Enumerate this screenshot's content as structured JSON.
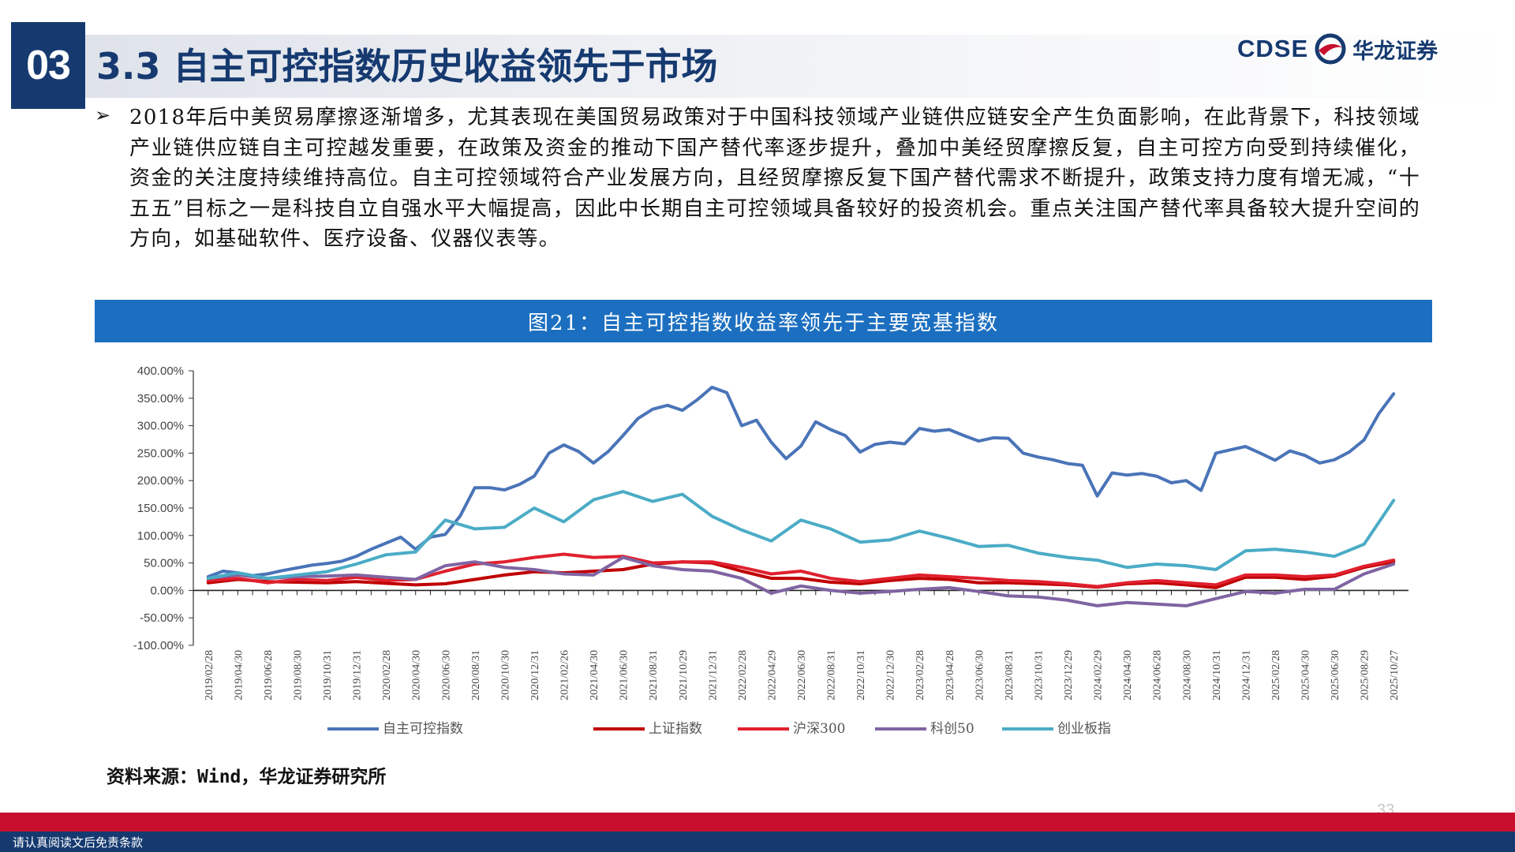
{
  "header": {
    "section_number": "03",
    "title": "3.3 自主可控指数历史收益领先于市场",
    "logo_text": "CDSE",
    "logo_cn": "华龙证券",
    "brand_color": "#163a70"
  },
  "body": {
    "bullet": "2018年后中美贸易摩擦逐渐增多，尤其表现在美国贸易政策对于中国科技领域产业链供应链安全产生负面影响，在此背景下，科技领域产业链供应链自主可控越发重要，在政策及资金的推动下国产替代率逐步提升，叠加中美经贸摩擦反复，自主可控方向受到持续催化，资金的关注度持续维持高位。自主可控领域符合产业发展方向，且经贸摩擦反复下国产替代需求不断提升，政策支持力度有增无减，“十五五”目标之一是科技自立自强水平大幅提高，因此中长期自主可控领域具备较好的投资机会。重点关注国产替代率具备较大提升空间的方向，如基础软件、医疗设备、仪器仪表等。"
  },
  "figure": {
    "caption": "图21：自主可控指数收益率领先于主要宽基指数",
    "source": "资料来源：Wind，华龙证券研究所"
  },
  "footer": {
    "page_number": "33",
    "disclaimer": "请认真阅读文后免责条款"
  },
  "chart_data": {
    "type": "line",
    "title": "",
    "xlabel": "",
    "ylabel": "",
    "ylim": [
      -100,
      400
    ],
    "yticks": [
      "400.00%",
      "350.00%",
      "300.00%",
      "250.00%",
      "200.00%",
      "150.00%",
      "100.00%",
      "50.00%",
      "0.00%",
      "-50.00%",
      "-100.00%"
    ],
    "categories": [
      "2019/02/28",
      "2019/04/30",
      "2019/06/28",
      "2019/08/30",
      "2019/10/31",
      "2019/12/31",
      "2020/02/28",
      "2020/04/30",
      "2020/06/30",
      "2020/08/31",
      "2020/10/30",
      "2020/12/31",
      "2021/02/26",
      "2021/04/30",
      "2021/06/30",
      "2021/08/31",
      "2021/10/29",
      "2021/12/31",
      "2022/02/28",
      "2022/04/29",
      "2022/06/30",
      "2022/08/31",
      "2022/10/31",
      "2022/12/30",
      "2023/02/28",
      "2023/04/28",
      "2023/06/30",
      "2023/08/31",
      "2023/10/31",
      "2023/12/29",
      "2024/02/29",
      "2024/04/30",
      "2024/06/28",
      "2024/08/30",
      "2024/10/31",
      "2024/12/31",
      "2025/02/28",
      "2025/04/30",
      "2025/06/30",
      "2025/08/29",
      "2025/10/27"
    ],
    "legend_position": "bottom",
    "series": [
      {
        "name": "自主可控指数",
        "color": "#4a74b8",
        "x": [
          0,
          0.5,
          1,
          1.5,
          2,
          2.5,
          3,
          3.5,
          4,
          4.5,
          5,
          5.5,
          6,
          6.5,
          7,
          7.5,
          8,
          8.5,
          9,
          9.5,
          10,
          10.5,
          11,
          11.5,
          12,
          12.5,
          13,
          13.5,
          14,
          14.5,
          15,
          15.5,
          16,
          16.5,
          17,
          17.5,
          18,
          18.5,
          19,
          19.5,
          20,
          20.5,
          21,
          21.5,
          22,
          22.5,
          23,
          23.5,
          24,
          24.5,
          25,
          25.5,
          26,
          26.5,
          27,
          27.5,
          28,
          28.5,
          29,
          29.5,
          30,
          30.5,
          31,
          31.5,
          32,
          32.5,
          33,
          33.5,
          34,
          34.5,
          35,
          35.5,
          36,
          36.5,
          37,
          37.5,
          38,
          38.5,
          39,
          39.5,
          40
        ],
        "values": [
          25,
          35,
          32,
          27,
          30,
          36,
          41,
          46,
          49,
          53,
          62,
          75,
          86,
          97,
          75,
          97,
          102,
          135,
          187,
          187,
          183,
          193,
          208,
          250,
          265,
          253,
          232,
          253,
          282,
          313,
          330,
          337,
          328,
          347,
          370,
          360,
          300,
          310,
          270,
          240,
          263,
          307,
          293,
          282,
          252,
          266,
          270,
          267,
          295,
          290,
          293,
          282,
          272,
          278,
          277,
          250,
          243,
          238,
          231,
          228,
          172,
          214,
          210,
          213,
          208,
          196,
          200,
          182,
          250,
          256,
          262,
          250,
          237,
          254,
          246,
          232,
          238,
          252,
          274,
          322,
          358
        ]
      },
      {
        "name": "上证指数",
        "color": "#c00000",
        "x": [
          0,
          1,
          2,
          3,
          4,
          5,
          6,
          7,
          8,
          9,
          10,
          11,
          12,
          13,
          14,
          15,
          16,
          17,
          18,
          19,
          20,
          21,
          22,
          23,
          24,
          25,
          26,
          27,
          28,
          29,
          30,
          31,
          32,
          33,
          34,
          35,
          36,
          37,
          38,
          39,
          40
        ],
        "values": [
          14,
          20,
          16,
          15,
          14,
          16,
          13,
          10,
          12,
          20,
          28,
          34,
          32,
          35,
          38,
          48,
          52,
          50,
          35,
          22,
          22,
          15,
          12,
          18,
          22,
          20,
          14,
          14,
          12,
          10,
          6,
          12,
          14,
          10,
          5,
          24,
          24,
          20,
          26,
          42,
          52
        ]
      },
      {
        "name": "沪深300",
        "color": "#e0202e",
        "x": [
          0,
          1,
          2,
          3,
          4,
          5,
          6,
          7,
          8,
          9,
          10,
          11,
          12,
          13,
          14,
          15,
          16,
          17,
          18,
          19,
          20,
          21,
          22,
          23,
          24,
          25,
          26,
          27,
          28,
          29,
          30,
          31,
          32,
          33,
          34,
          35,
          36,
          37,
          38,
          39,
          40
        ],
        "values": [
          18,
          22,
          14,
          20,
          18,
          24,
          18,
          20,
          35,
          48,
          52,
          60,
          66,
          60,
          62,
          50,
          52,
          52,
          42,
          30,
          35,
          22,
          16,
          22,
          28,
          25,
          22,
          18,
          16,
          12,
          7,
          14,
          18,
          14,
          10,
          28,
          28,
          25,
          28,
          44,
          55
        ]
      },
      {
        "name": "科创50",
        "color": "#8064a2",
        "x": [
          0,
          1,
          2,
          3,
          4,
          5,
          6,
          7,
          8,
          9,
          10,
          11,
          12,
          13,
          14,
          15,
          16,
          17,
          18,
          19,
          20,
          21,
          22,
          23,
          24,
          25,
          26,
          27,
          28,
          29,
          30,
          31,
          32,
          33,
          34,
          35,
          36,
          37,
          38,
          39,
          40
        ],
        "values": [
          22,
          28,
          22,
          25,
          26,
          28,
          24,
          20,
          45,
          52,
          42,
          38,
          30,
          28,
          60,
          45,
          38,
          35,
          22,
          -5,
          8,
          0,
          -5,
          -2,
          2,
          5,
          -2,
          -10,
          -12,
          -18,
          -28,
          -22,
          -25,
          -28,
          -15,
          -2,
          -5,
          2,
          2,
          30,
          48
        ]
      },
      {
        "name": "创业板指",
        "color": "#4bacc6",
        "x": [
          0,
          1,
          2,
          3,
          4,
          5,
          6,
          7,
          8,
          9,
          10,
          11,
          12,
          13,
          14,
          15,
          16,
          17,
          18,
          19,
          20,
          21,
          22,
          23,
          24,
          25,
          26,
          27,
          28,
          29,
          30,
          31,
          32,
          33,
          34,
          35,
          36,
          37,
          38,
          39,
          40
        ],
        "values": [
          22,
          32,
          22,
          28,
          34,
          48,
          65,
          70,
          128,
          112,
          115,
          150,
          125,
          165,
          180,
          162,
          175,
          135,
          110,
          90,
          128,
          112,
          88,
          92,
          108,
          95,
          80,
          82,
          68,
          60,
          55,
          42,
          48,
          45,
          38,
          72,
          75,
          70,
          62,
          84,
          164
        ]
      }
    ]
  }
}
